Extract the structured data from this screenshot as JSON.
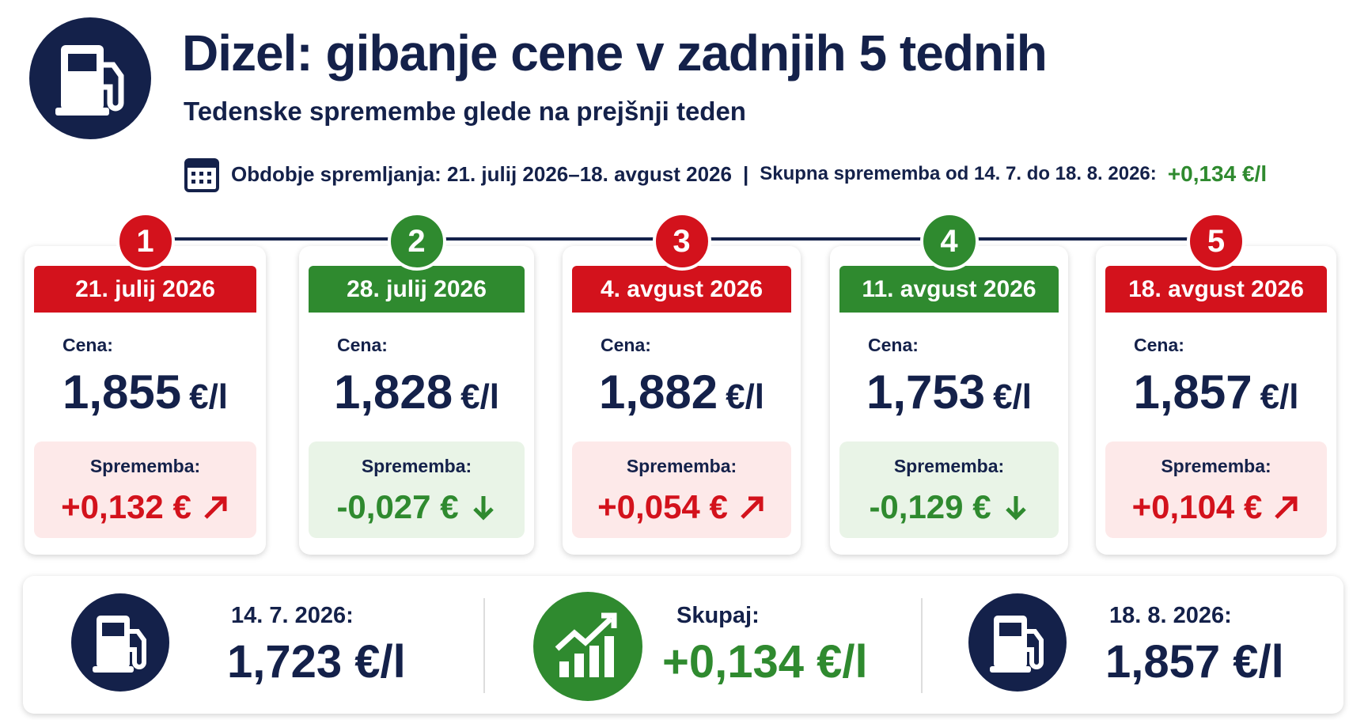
{
  "header": {
    "title": "Dizel: gibanje cene v zadnjih 5 tednih",
    "subtitle": "Tedenske spremembe glede na prejšnji teden",
    "period": "Obdobje spremljanja: 21. julij 2026–18. avgust 2026",
    "separator": "|",
    "total_label": "Skupna sprememba od 14. 7. do 18. 8. 2026:",
    "total_value": "+0,134 €/l"
  },
  "cards": [
    {
      "number": "1",
      "date": "21. julij 2026",
      "price_label": "Cena:",
      "price": "1,855",
      "unit": "€/l",
      "change_label": "Sprememba:",
      "change": "+0,132 €",
      "color": "#d3121c"
    },
    {
      "number": "2",
      "date": "28. julij 2026",
      "price_label": "Cena:",
      "price": "1,828",
      "unit": "€/l",
      "change_label": "Sprememba:",
      "change": "-0,027 €",
      "color": "#2f8a2f"
    },
    {
      "number": "3",
      "date": "4. avgust 2026",
      "price_label": "Cena:",
      "price": "1,882",
      "unit": "€/l",
      "change_label": "Sprememba:",
      "change": "+0,054 €",
      "color": "#d3121c"
    },
    {
      "number": "4",
      "date": "11. avgust 2026",
      "price_label": "Cena:",
      "price": "1,753",
      "unit": "€/l",
      "change_label": "Sprememba:",
      "change": "-0,129 €",
      "color": "#2f8a2f"
    },
    {
      "number": "5",
      "date": "18. avgust 2026",
      "price_label": "Cena:",
      "price": "1,857",
      "unit": "€/l",
      "change_label": "Sprememba:",
      "change": "+0,104 €",
      "color": "#d3121c"
    }
  ],
  "summary": {
    "start_label": "14. 7. 2026:",
    "start_value": "1,723 €/l",
    "total_label": "Skupaj:",
    "total_value": "+0,134 €/l",
    "end_label": "18. 8. 2026:",
    "end_value": "1,857 €/l"
  }
}
